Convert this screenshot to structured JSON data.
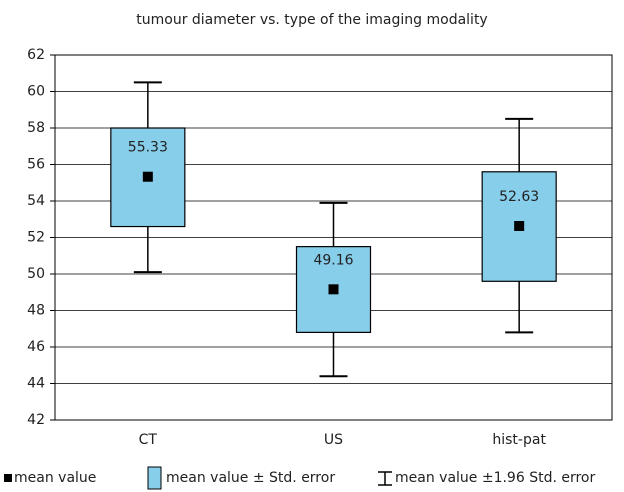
{
  "chart_data": {
    "type": "box",
    "title": "tumour diameter vs. type of the imaging modality",
    "categories": [
      "CT",
      "US",
      "hist-pat"
    ],
    "series": [
      {
        "name": "mean value",
        "color": "#000000",
        "values": [
          55.33,
          49.16,
          52.63
        ]
      },
      {
        "name": "mean value ± Std. error",
        "color": "#87ceeb",
        "low": [
          52.6,
          46.8,
          49.6
        ],
        "high": [
          58.0,
          51.5,
          55.6
        ]
      },
      {
        "name": "mean value ±1.96 Std. error",
        "color": "#000000",
        "low": [
          50.1,
          44.4,
          46.8
        ],
        "high": [
          60.5,
          53.9,
          58.5
        ]
      }
    ],
    "ylim": [
      42,
      62
    ],
    "yticks": [
      42,
      44,
      46,
      48,
      50,
      52,
      54,
      56,
      58,
      60,
      62
    ],
    "grid": true
  }
}
